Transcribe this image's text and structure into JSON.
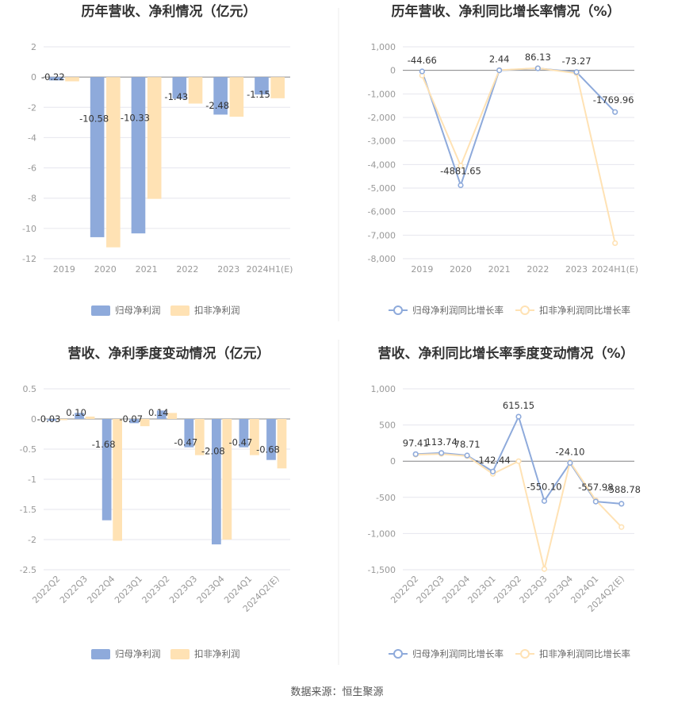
{
  "colors": {
    "series1": "#8eaadb",
    "series2": "#ffe2b4",
    "grid": "#e6e6ee",
    "axis": "#888888"
  },
  "source_label": "数据来源：恒生聚源",
  "chart_data": [
    {
      "type": "bar",
      "title": "历年营收、净利情况（亿元）",
      "categories": [
        "2019",
        "2020",
        "2021",
        "2022",
        "2023",
        "2024H1(E)"
      ],
      "series": [
        {
          "name": "归母净利润",
          "values": [
            -0.22,
            -10.58,
            -10.33,
            -1.43,
            -2.48,
            -1.15
          ]
        },
        {
          "name": "扣非净利润",
          "values": [
            -0.28,
            -11.25,
            -8.05,
            -1.75,
            -2.62,
            -1.4
          ]
        }
      ],
      "data_labels": [
        "-0.22",
        "-10.58",
        "-10.33",
        "-1.43",
        "-2.48",
        "-1.15"
      ],
      "yticks": [
        "2",
        "0",
        "-2",
        "-4",
        "-6",
        "-8",
        "-10",
        "-12"
      ],
      "ylim": [
        -12,
        2
      ],
      "legend": "bottom"
    },
    {
      "type": "line",
      "title": "历年营收、净利同比增长率情况（%）",
      "categories": [
        "2019",
        "2020",
        "2021",
        "2022",
        "2023",
        "2024H1(E)"
      ],
      "series": [
        {
          "name": "归母净利润同比增长率",
          "values": [
            -44.66,
            -4881.65,
            2.44,
            86.13,
            -73.27,
            -1769.96
          ]
        },
        {
          "name": "扣非净利润同比增长率",
          "values": [
            -220,
            -4050,
            10,
            95,
            -120,
            -7340
          ]
        }
      ],
      "data_labels": [
        "-44.66",
        "-4881.65",
        "2.44",
        "86.13",
        "-73.27",
        "-1769.96"
      ],
      "yticks": [
        "1,000",
        "0",
        "-1,000",
        "-2,000",
        "-3,000",
        "-4,000",
        "-5,000",
        "-6,000",
        "-7,000",
        "-8,000"
      ],
      "ylim": [
        -8000,
        1000
      ],
      "legend": "bottom"
    },
    {
      "type": "bar",
      "title": "营收、净利季度变动情况（亿元）",
      "categories": [
        "2022Q2",
        "2022Q3",
        "2022Q4",
        "2023Q1",
        "2023Q2",
        "2023Q3",
        "2023Q4",
        "2024Q1",
        "2024Q2(E)"
      ],
      "series": [
        {
          "name": "归母净利润",
          "values": [
            -0.03,
            0.1,
            -1.68,
            -0.07,
            0.14,
            -0.47,
            -2.08,
            -0.47,
            -0.68
          ]
        },
        {
          "name": "扣非净利润",
          "values": [
            -0.02,
            0.04,
            -2.02,
            -0.12,
            0.1,
            -0.6,
            -2.0,
            -0.6,
            -0.82
          ]
        }
      ],
      "data_labels": [
        "-0.03",
        "0.10",
        "-1.68",
        "-0.07",
        "0.14",
        "-0.47",
        "-2.08",
        "-0.47",
        "-0.68"
      ],
      "yticks": [
        "0.5",
        "0",
        "-0.5",
        "-1",
        "-1.5",
        "-2",
        "-2.5"
      ],
      "ylim": [
        -2.5,
        0.5
      ],
      "legend": "bottom"
    },
    {
      "type": "line",
      "title": "营收、净利同比增长率季度变动情况（%）",
      "categories": [
        "2022Q2",
        "2022Q3",
        "2022Q4",
        "2023Q1",
        "2023Q2",
        "2023Q3",
        "2023Q4",
        "2024Q1",
        "2024Q2(E)"
      ],
      "series": [
        {
          "name": "归母净利润同比增长率",
          "values": [
            97.41,
            113.74,
            78.71,
            -142.44,
            615.15,
            -550.1,
            -24.1,
            -557.98,
            -588.78
          ]
        },
        {
          "name": "扣非净利润同比增长率",
          "values": [
            90,
            100,
            70,
            -175,
            0,
            -1490,
            -10,
            -540,
            -910
          ]
        }
      ],
      "data_labels": [
        "97.41",
        "113.74",
        "78.71",
        "-142.44",
        "615.15",
        "-550.10",
        "-24.10",
        "-557.98",
        "-588.78"
      ],
      "yticks": [
        "1,000",
        "500",
        "0",
        "-500",
        "-1,000",
        "-1,500"
      ],
      "ylim": [
        -1500,
        1000
      ],
      "legend": "bottom"
    }
  ]
}
